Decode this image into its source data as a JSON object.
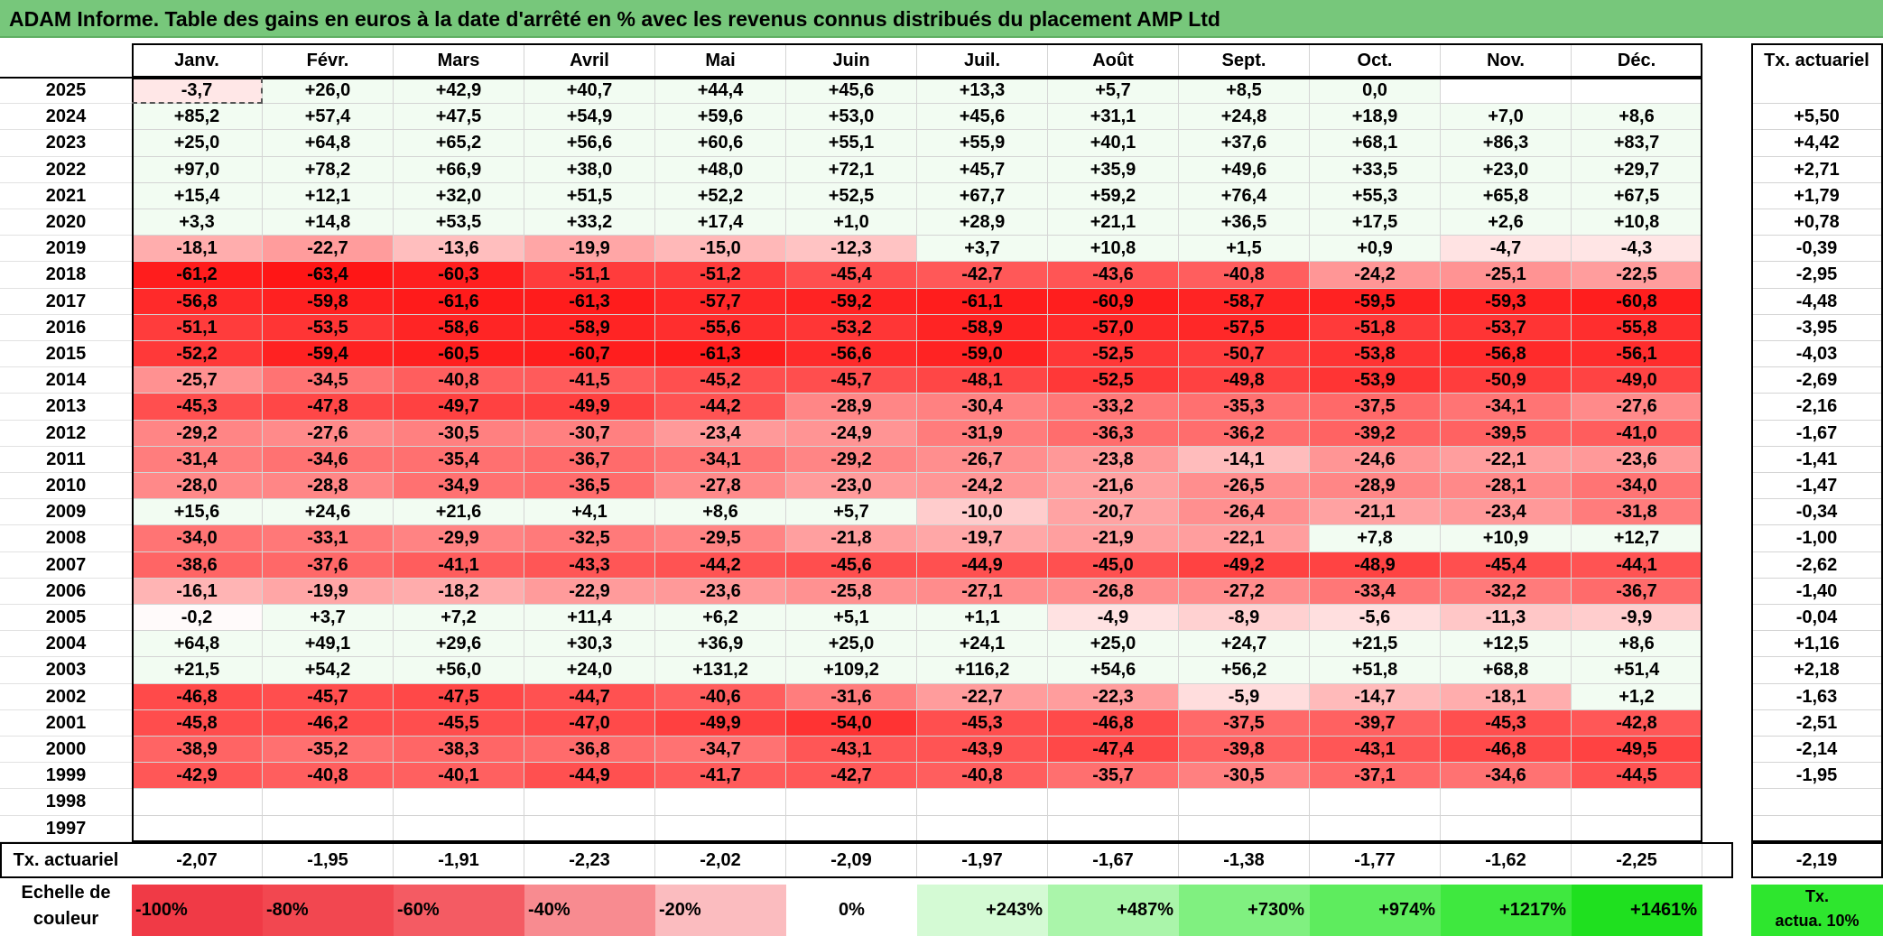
{
  "title": "ADAM Informe. Table des gains en euros à la date d'arrêté en % avec les revenus connus distribués du placement AMP Ltd",
  "months": [
    "Janv.",
    "Févr.",
    "Mars",
    "Avril",
    "Mai",
    "Juin",
    "Juil.",
    "Août",
    "Sept.",
    "Oct.",
    "Nov.",
    "Déc."
  ],
  "rate_header": "Tx. actuariel",
  "rows": [
    {
      "year": "2025",
      "values": [
        "-3,7",
        "+26,0",
        "+42,9",
        "+40,7",
        "+44,4",
        "+45,6",
        "+13,3",
        "+5,7",
        "+8,5",
        "0,0",
        "",
        ""
      ],
      "rate": ""
    },
    {
      "year": "2024",
      "values": [
        "+85,2",
        "+57,4",
        "+47,5",
        "+54,9",
        "+59,6",
        "+53,0",
        "+45,6",
        "+31,1",
        "+24,8",
        "+18,9",
        "+7,0",
        "+8,6"
      ],
      "rate": "+5,50"
    },
    {
      "year": "2023",
      "values": [
        "+25,0",
        "+64,8",
        "+65,2",
        "+56,6",
        "+60,6",
        "+55,1",
        "+55,9",
        "+40,1",
        "+37,6",
        "+68,1",
        "+86,3",
        "+83,7"
      ],
      "rate": "+4,42"
    },
    {
      "year": "2022",
      "values": [
        "+97,0",
        "+78,2",
        "+66,9",
        "+38,0",
        "+48,0",
        "+72,1",
        "+45,7",
        "+35,9",
        "+49,6",
        "+33,5",
        "+23,0",
        "+29,7"
      ],
      "rate": "+2,71"
    },
    {
      "year": "2021",
      "values": [
        "+15,4",
        "+12,1",
        "+32,0",
        "+51,5",
        "+52,2",
        "+52,5",
        "+67,7",
        "+59,2",
        "+76,4",
        "+55,3",
        "+65,8",
        "+67,5"
      ],
      "rate": "+1,79"
    },
    {
      "year": "2020",
      "values": [
        "+3,3",
        "+14,8",
        "+53,5",
        "+33,2",
        "+17,4",
        "+1,0",
        "+28,9",
        "+21,1",
        "+36,5",
        "+17,5",
        "+2,6",
        "+10,8"
      ],
      "rate": "+0,78"
    },
    {
      "year": "2019",
      "values": [
        "-18,1",
        "-22,7",
        "-13,6",
        "-19,9",
        "-15,0",
        "-12,3",
        "+3,7",
        "+10,8",
        "+1,5",
        "+0,9",
        "-4,7",
        "-4,3"
      ],
      "rate": "-0,39"
    },
    {
      "year": "2018",
      "values": [
        "-61,2",
        "-63,4",
        "-60,3",
        "-51,1",
        "-51,2",
        "-45,4",
        "-42,7",
        "-43,6",
        "-40,8",
        "-24,2",
        "-25,1",
        "-22,5"
      ],
      "rate": "-2,95"
    },
    {
      "year": "2017",
      "values": [
        "-56,8",
        "-59,8",
        "-61,6",
        "-61,3",
        "-57,7",
        "-59,2",
        "-61,1",
        "-60,9",
        "-58,7",
        "-59,5",
        "-59,3",
        "-60,8"
      ],
      "rate": "-4,48"
    },
    {
      "year": "2016",
      "values": [
        "-51,1",
        "-53,5",
        "-58,6",
        "-58,9",
        "-55,6",
        "-53,2",
        "-58,9",
        "-57,0",
        "-57,5",
        "-51,8",
        "-53,7",
        "-55,8"
      ],
      "rate": "-3,95"
    },
    {
      "year": "2015",
      "values": [
        "-52,2",
        "-59,4",
        "-60,5",
        "-60,7",
        "-61,3",
        "-56,6",
        "-59,0",
        "-52,5",
        "-50,7",
        "-53,8",
        "-56,8",
        "-56,1"
      ],
      "rate": "-4,03"
    },
    {
      "year": "2014",
      "values": [
        "-25,7",
        "-34,5",
        "-40,8",
        "-41,5",
        "-45,2",
        "-45,7",
        "-48,1",
        "-52,5",
        "-49,8",
        "-53,9",
        "-50,9",
        "-49,0"
      ],
      "rate": "-2,69"
    },
    {
      "year": "2013",
      "values": [
        "-45,3",
        "-47,8",
        "-49,7",
        "-49,9",
        "-44,2",
        "-28,9",
        "-30,4",
        "-33,2",
        "-35,3",
        "-37,5",
        "-34,1",
        "-27,6"
      ],
      "rate": "-2,16"
    },
    {
      "year": "2012",
      "values": [
        "-29,2",
        "-27,6",
        "-30,5",
        "-30,7",
        "-23,4",
        "-24,9",
        "-31,9",
        "-36,3",
        "-36,2",
        "-39,2",
        "-39,5",
        "-41,0"
      ],
      "rate": "-1,67"
    },
    {
      "year": "2011",
      "values": [
        "-31,4",
        "-34,6",
        "-35,4",
        "-36,7",
        "-34,1",
        "-29,2",
        "-26,7",
        "-23,8",
        "-14,1",
        "-24,6",
        "-22,1",
        "-23,6"
      ],
      "rate": "-1,41"
    },
    {
      "year": "2010",
      "values": [
        "-28,0",
        "-28,8",
        "-34,9",
        "-36,5",
        "-27,8",
        "-23,0",
        "-24,2",
        "-21,6",
        "-26,5",
        "-28,9",
        "-28,1",
        "-34,0"
      ],
      "rate": "-1,47"
    },
    {
      "year": "2009",
      "values": [
        "+15,6",
        "+24,6",
        "+21,6",
        "+4,1",
        "+8,6",
        "+5,7",
        "-10,0",
        "-20,7",
        "-26,4",
        "-21,1",
        "-23,4",
        "-31,8"
      ],
      "rate": "-0,34"
    },
    {
      "year": "2008",
      "values": [
        "-34,0",
        "-33,1",
        "-29,9",
        "-32,5",
        "-29,5",
        "-21,8",
        "-19,7",
        "-21,9",
        "-22,1",
        "+7,8",
        "+10,9",
        "+12,7"
      ],
      "rate": "-1,00"
    },
    {
      "year": "2007",
      "values": [
        "-38,6",
        "-37,6",
        "-41,1",
        "-43,3",
        "-44,2",
        "-45,6",
        "-44,9",
        "-45,0",
        "-49,2",
        "-48,9",
        "-45,4",
        "-44,1"
      ],
      "rate": "-2,62"
    },
    {
      "year": "2006",
      "values": [
        "-16,1",
        "-19,9",
        "-18,2",
        "-22,9",
        "-23,6",
        "-25,8",
        "-27,1",
        "-26,8",
        "-27,2",
        "-33,4",
        "-32,2",
        "-36,7"
      ],
      "rate": "-1,40"
    },
    {
      "year": "2005",
      "values": [
        "-0,2",
        "+3,7",
        "+7,2",
        "+11,4",
        "+6,2",
        "+5,1",
        "+1,1",
        "-4,9",
        "-8,9",
        "-5,6",
        "-11,3",
        "-9,9"
      ],
      "rate": "-0,04"
    },
    {
      "year": "2004",
      "values": [
        "+64,8",
        "+49,1",
        "+29,6",
        "+30,3",
        "+36,9",
        "+25,0",
        "+24,1",
        "+25,0",
        "+24,7",
        "+21,5",
        "+12,5",
        "+8,6"
      ],
      "rate": "+1,16"
    },
    {
      "year": "2003",
      "values": [
        "+21,5",
        "+54,2",
        "+56,0",
        "+24,0",
        "+131,2",
        "+109,2",
        "+116,2",
        "+54,6",
        "+56,2",
        "+51,8",
        "+68,8",
        "+51,4"
      ],
      "rate": "+2,18"
    },
    {
      "year": "2002",
      "values": [
        "-46,8",
        "-45,7",
        "-47,5",
        "-44,7",
        "-40,6",
        "-31,6",
        "-22,7",
        "-22,3",
        "-5,9",
        "-14,7",
        "-18,1",
        "+1,2"
      ],
      "rate": "-1,63"
    },
    {
      "year": "2001",
      "values": [
        "-45,8",
        "-46,2",
        "-45,5",
        "-47,0",
        "-49,9",
        "-54,0",
        "-45,3",
        "-46,8",
        "-37,5",
        "-39,7",
        "-45,3",
        "-42,8"
      ],
      "rate": "-2,51"
    },
    {
      "year": "2000",
      "values": [
        "-38,9",
        "-35,2",
        "-38,3",
        "-36,8",
        "-34,7",
        "-43,1",
        "-43,9",
        "-47,4",
        "-39,8",
        "-43,1",
        "-46,8",
        "-49,5"
      ],
      "rate": "-2,14"
    },
    {
      "year": "1999",
      "values": [
        "-42,9",
        "-40,8",
        "-40,1",
        "-44,9",
        "-41,7",
        "-42,7",
        "-40,8",
        "-35,7",
        "-30,5",
        "-37,1",
        "-34,6",
        "-44,5"
      ],
      "rate": "-1,95"
    },
    {
      "year": "1998",
      "values": [
        "",
        "",
        "",
        "",
        "",
        "",
        "",
        "",
        "",
        "",
        "",
        ""
      ],
      "rate": ""
    },
    {
      "year": "1997",
      "values": [
        "",
        "",
        "",
        "",
        "",
        "",
        "",
        "",
        "",
        "",
        "",
        ""
      ],
      "rate": ""
    }
  ],
  "totals": {
    "label": "Tx. actuariel",
    "values": [
      "-2,07",
      "-1,95",
      "-1,91",
      "-2,23",
      "-2,02",
      "-2,09",
      "-1,97",
      "-1,67",
      "-1,38",
      "-1,77",
      "-1,62",
      "-2,25"
    ],
    "overall": "-2,19"
  },
  "scale": {
    "label_line1": "Echelle de",
    "label_line2": "couleur",
    "steps": [
      {
        "label": "-100%",
        "color": "#f03a46"
      },
      {
        "label": "-80%",
        "color": "#f24750"
      },
      {
        "label": "-60%",
        "color": "#f45b63"
      },
      {
        "label": "-40%",
        "color": "#f88b90"
      },
      {
        "label": "-20%",
        "color": "#fbbcbf"
      },
      {
        "label": "0%",
        "color": "#ffffff"
      },
      {
        "label": "+243%",
        "color": "#d4fad4"
      },
      {
        "label": "+487%",
        "color": "#aaf5aa"
      },
      {
        "label": "+730%",
        "color": "#80f080"
      },
      {
        "label": "+974%",
        "color": "#5eec5e"
      },
      {
        "label": "+1217%",
        "color": "#3fe83f"
      },
      {
        "label": "+1461%",
        "color": "#1fe01f"
      }
    ],
    "actua_line1": "Tx.",
    "actua_line2": "actua. 10%",
    "actua_color": "#2ee62e"
  },
  "colors": {
    "title_bg": "#77c77b",
    "neg_max": "#ff1414",
    "pos_tint": "#f2fcf2",
    "grid_border": "#000000"
  }
}
